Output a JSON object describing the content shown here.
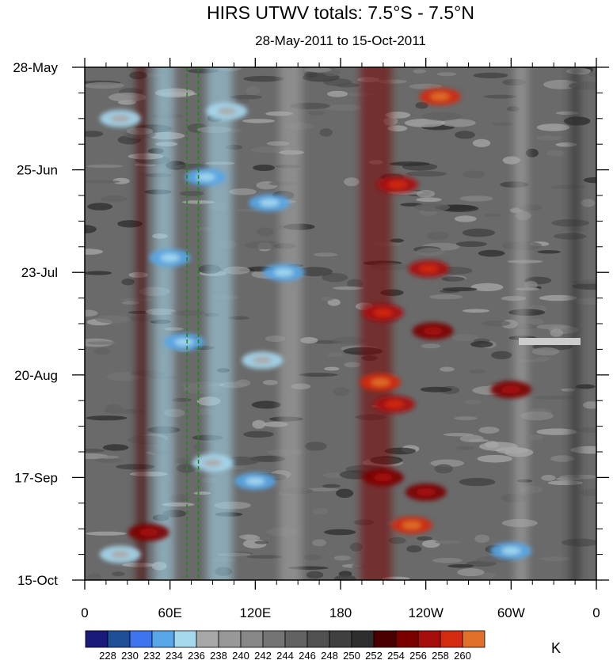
{
  "chart_data": {
    "type": "heatmap",
    "title": "HIRS UTWV totals: 7.5°S - 7.5°N",
    "subtitle": "28-May-2011 to 15-Oct-2011",
    "x_ticks": [
      {
        "lon": 0,
        "label": "0"
      },
      {
        "lon": 60,
        "label": "60E"
      },
      {
        "lon": 120,
        "label": "120E"
      },
      {
        "lon": 180,
        "label": "180"
      },
      {
        "lon": 240,
        "label": "120W"
      },
      {
        "lon": 300,
        "label": "60W"
      },
      {
        "lon": 360,
        "label": "0"
      }
    ],
    "x_range": [
      0,
      360
    ],
    "y_ticks": [
      {
        "day": 0,
        "label": "28-May"
      },
      {
        "day": 28,
        "label": "25-Jun"
      },
      {
        "day": 56,
        "label": "23-Jul"
      },
      {
        "day": 84,
        "label": "20-Aug"
      },
      {
        "day": 112,
        "label": "17-Sep"
      },
      {
        "day": 140,
        "label": "15-Oct"
      }
    ],
    "y_range": [
      0,
      140
    ],
    "reference_lines_lon": [
      72,
      80
    ],
    "reference_line_color": "#1b8a1b",
    "colorbar": {
      "unit": "K",
      "labels": [
        "228",
        "230",
        "232",
        "234",
        "236",
        "238",
        "240",
        "242",
        "244",
        "246",
        "248",
        "250",
        "252",
        "254",
        "256",
        "258",
        "260"
      ],
      "colors": [
        "#1a1a7a",
        "#1f4f96",
        "#3f74f0",
        "#57a7e8",
        "#a6d8ee",
        "#a8a8a8",
        "#989898",
        "#878787",
        "#747474",
        "#626262",
        "#505050",
        "#404040",
        "#2e2e2e",
        "#4a0000",
        "#7a0000",
        "#a80d0d",
        "#d42a10",
        "#e0702a"
      ]
    },
    "bands": [
      {
        "kind": "dry",
        "lon": 56,
        "width": 14,
        "level": 234
      },
      {
        "kind": "dry",
        "lon": 95,
        "width": 18,
        "level": 235
      },
      {
        "kind": "dry",
        "lon": 145,
        "width": 16,
        "level": 236
      },
      {
        "kind": "dry",
        "lon": 307,
        "width": 10,
        "level": 236
      },
      {
        "kind": "moist",
        "lon": 205,
        "width": 22,
        "level": 254
      },
      {
        "kind": "moist",
        "lon": 40,
        "width": 8,
        "level": 252
      },
      {
        "kind": "moist",
        "lon": 345,
        "width": 8,
        "level": 250
      }
    ],
    "hotspots": [
      {
        "lon": 250,
        "day": 8,
        "level": 258
      },
      {
        "lon": 220,
        "day": 32,
        "level": 256
      },
      {
        "lon": 242,
        "day": 55,
        "level": 256
      },
      {
        "lon": 210,
        "day": 67,
        "level": 256
      },
      {
        "lon": 245,
        "day": 72,
        "level": 255
      },
      {
        "lon": 208,
        "day": 86,
        "level": 258
      },
      {
        "lon": 218,
        "day": 92,
        "level": 256
      },
      {
        "lon": 210,
        "day": 112,
        "level": 255
      },
      {
        "lon": 230,
        "day": 125,
        "level": 258
      },
      {
        "lon": 240,
        "day": 116,
        "level": 254
      },
      {
        "lon": 300,
        "day": 88,
        "level": 254
      },
      {
        "lon": 45,
        "day": 127,
        "level": 254
      }
    ],
    "coldspots": [
      {
        "lon": 25,
        "day": 14,
        "level": 234
      },
      {
        "lon": 85,
        "day": 30,
        "level": 233
      },
      {
        "lon": 130,
        "day": 37,
        "level": 232
      },
      {
        "lon": 140,
        "day": 56,
        "level": 233
      },
      {
        "lon": 60,
        "day": 52,
        "level": 233
      },
      {
        "lon": 70,
        "day": 75,
        "level": 233
      },
      {
        "lon": 125,
        "day": 80,
        "level": 234
      },
      {
        "lon": 90,
        "day": 108,
        "level": 234
      },
      {
        "lon": 120,
        "day": 113,
        "level": 233
      },
      {
        "lon": 300,
        "day": 132,
        "level": 233
      },
      {
        "lon": 25,
        "day": 133,
        "level": 234
      },
      {
        "lon": 100,
        "day": 12,
        "level": 235
      }
    ]
  }
}
